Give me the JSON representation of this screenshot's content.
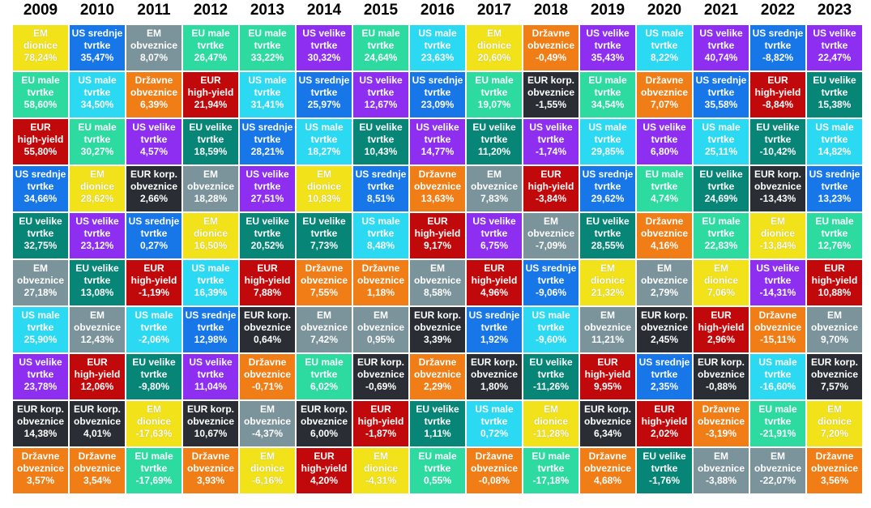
{
  "chart_data": {
    "type": "table",
    "years": [
      "2009",
      "2010",
      "2011",
      "2012",
      "2013",
      "2014",
      "2015",
      "2016",
      "2017",
      "2018",
      "2019",
      "2020",
      "2021",
      "2022",
      "2023"
    ],
    "asset_classes": {
      "em_eq": {
        "label": [
          "EM",
          "dionice"
        ],
        "color": "#f2e21a"
      },
      "us_mid": {
        "label": [
          "US srednje",
          "tvrtke"
        ],
        "color": "#1877e8"
      },
      "em_bond": {
        "label": [
          "EM",
          "obveznice"
        ],
        "color": "#7b939b"
      },
      "eu_small": {
        "label": [
          "EU male",
          "tvrtke"
        ],
        "color": "#2ddba0"
      },
      "us_big": {
        "label": [
          "US velike",
          "tvrtke"
        ],
        "color": "#8d2ef0"
      },
      "eu_big": {
        "label": [
          "EU velike",
          "tvrtke"
        ],
        "color": "#078577"
      },
      "us_small": {
        "label": [
          "US male",
          "tvrtke"
        ],
        "color": "#2cd9f2"
      },
      "gov": {
        "label": [
          "Državne",
          "obveznice"
        ],
        "color": "#f07d16"
      },
      "hy": {
        "label": [
          "EUR",
          "high-yield"
        ],
        "color": "#c1090b"
      },
      "corp": {
        "label": [
          "EUR korp.",
          "obveznice"
        ],
        "color": "#2a2e34"
      }
    },
    "columns": [
      [
        [
          "em_eq",
          "78,24%"
        ],
        [
          "eu_small",
          "58,60%"
        ],
        [
          "hy",
          "55,80%"
        ],
        [
          "us_mid",
          "34,66%"
        ],
        [
          "eu_big",
          "32,75%"
        ],
        [
          "em_bond",
          "27,18%"
        ],
        [
          "us_small",
          "25,90%"
        ],
        [
          "us_big",
          "23,78%"
        ],
        [
          "corp",
          "14,38%"
        ],
        [
          "gov",
          "3,57%"
        ]
      ],
      [
        [
          "us_mid",
          "35,47%"
        ],
        [
          "us_small",
          "34,50%"
        ],
        [
          "eu_small",
          "30,27%"
        ],
        [
          "em_eq",
          "28,62%"
        ],
        [
          "us_big",
          "23,12%"
        ],
        [
          "eu_big",
          "13,08%"
        ],
        [
          "em_bond",
          "12,43%"
        ],
        [
          "hy",
          "12,06%"
        ],
        [
          "corp",
          "4,01%"
        ],
        [
          "gov",
          "3,54%"
        ]
      ],
      [
        [
          "em_bond",
          "8,07%"
        ],
        [
          "gov",
          "6,39%"
        ],
        [
          "us_big",
          "4,57%"
        ],
        [
          "corp",
          "2,66%"
        ],
        [
          "us_mid",
          "0,27%"
        ],
        [
          "hy",
          "-1,19%"
        ],
        [
          "us_small",
          "-2,06%"
        ],
        [
          "eu_big",
          "-9,80%"
        ],
        [
          "em_eq",
          "-17,63%"
        ],
        [
          "eu_small",
          "-17,69%"
        ]
      ],
      [
        [
          "eu_small",
          "26,47%"
        ],
        [
          "hy",
          "21,94%"
        ],
        [
          "eu_big",
          "18,59%"
        ],
        [
          "em_bond",
          "18,28%"
        ],
        [
          "em_eq",
          "16,50%"
        ],
        [
          "us_small",
          "16,39%"
        ],
        [
          "us_mid",
          "12,98%"
        ],
        [
          "us_big",
          "11,04%"
        ],
        [
          "corp",
          "10,67%"
        ],
        [
          "gov",
          "3,93%"
        ]
      ],
      [
        [
          "eu_small",
          "33,22%"
        ],
        [
          "us_small",
          "31,41%"
        ],
        [
          "us_mid",
          "28,21%"
        ],
        [
          "us_big",
          "27,51%"
        ],
        [
          "eu_big",
          "20,52%"
        ],
        [
          "hy",
          "7,88%"
        ],
        [
          "corp",
          "0,64%"
        ],
        [
          "gov",
          "-0,71%"
        ],
        [
          "em_bond",
          "-4,37%"
        ],
        [
          "em_eq",
          "-6,16%"
        ]
      ],
      [
        [
          "us_big",
          "30,32%"
        ],
        [
          "us_mid",
          "25,97%"
        ],
        [
          "us_small",
          "18,27%"
        ],
        [
          "em_eq",
          "10,83%"
        ],
        [
          "eu_big",
          "7,73%"
        ],
        [
          "gov",
          "7,55%"
        ],
        [
          "em_bond",
          "7,42%"
        ],
        [
          "eu_small",
          "6,02%"
        ],
        [
          "corp",
          "6,00%"
        ],
        [
          "hy",
          "4,20%"
        ]
      ],
      [
        [
          "eu_small",
          "24,64%"
        ],
        [
          "us_big",
          "12,67%"
        ],
        [
          "eu_big",
          "10,43%"
        ],
        [
          "us_mid",
          "8,51%"
        ],
        [
          "us_small",
          "8,48%"
        ],
        [
          "gov",
          "1,18%"
        ],
        [
          "em_bond",
          "0,95%"
        ],
        [
          "corp",
          "-0,69%"
        ],
        [
          "hy",
          "-1,87%"
        ],
        [
          "em_eq",
          "-4,31%"
        ]
      ],
      [
        [
          "us_small",
          "23,63%"
        ],
        [
          "us_mid",
          "23,09%"
        ],
        [
          "us_big",
          "14,77%"
        ],
        [
          "gov",
          "13,63%"
        ],
        [
          "hy",
          "9,17%"
        ],
        [
          "em_bond",
          "8,58%"
        ],
        [
          "corp",
          "3,39%"
        ],
        [
          "gov",
          "2,29%"
        ],
        [
          "eu_big",
          "1,11%"
        ],
        [
          "eu_small",
          "0,55%"
        ]
      ],
      [
        [
          "em_eq",
          "20,60%"
        ],
        [
          "eu_small",
          "19,07%"
        ],
        [
          "eu_big",
          "11,20%"
        ],
        [
          "em_bond",
          "7,83%"
        ],
        [
          "us_big",
          "6,75%"
        ],
        [
          "hy",
          "4,96%"
        ],
        [
          "us_mid",
          "1,92%"
        ],
        [
          "corp",
          "1,80%"
        ],
        [
          "us_small",
          "0,72%"
        ],
        [
          "gov",
          "-0,08%"
        ]
      ],
      [
        [
          "gov",
          "-0,49%"
        ],
        [
          "corp",
          "-1,55%"
        ],
        [
          "us_big",
          "-1,74%"
        ],
        [
          "hy",
          "-3,84%"
        ],
        [
          "em_bond",
          "-7,09%"
        ],
        [
          "us_mid",
          "-9,06%"
        ],
        [
          "us_small",
          "-9,60%"
        ],
        [
          "eu_big",
          "-11,26%"
        ],
        [
          "em_eq",
          "-11,28%"
        ],
        [
          "eu_small",
          "-17,18%"
        ]
      ],
      [
        [
          "us_big",
          "35,43%"
        ],
        [
          "eu_small",
          "34,54%"
        ],
        [
          "us_small",
          "29,85%"
        ],
        [
          "us_mid",
          "29,62%"
        ],
        [
          "eu_big",
          "28,55%"
        ],
        [
          "em_eq",
          "21,32%"
        ],
        [
          "em_bond",
          "11,21%"
        ],
        [
          "hy",
          "9,95%"
        ],
        [
          "corp",
          "6,34%"
        ],
        [
          "gov",
          "4,68%"
        ]
      ],
      [
        [
          "us_small",
          "8,22%"
        ],
        [
          "gov",
          "7,07%"
        ],
        [
          "us_big",
          "6,80%"
        ],
        [
          "eu_small",
          "4,74%"
        ],
        [
          "gov",
          "4,16%"
        ],
        [
          "em_bond",
          "2,79%"
        ],
        [
          "corp",
          "2,45%"
        ],
        [
          "us_mid",
          "2,35%"
        ],
        [
          "hy",
          "2,02%"
        ],
        [
          "eu_big",
          "-1,76%"
        ]
      ],
      [
        [
          "us_big",
          "40,74%"
        ],
        [
          "us_mid",
          "35,58%"
        ],
        [
          "us_small",
          "25,11%"
        ],
        [
          "eu_big",
          "24,69%"
        ],
        [
          "eu_small",
          "22,83%"
        ],
        [
          "em_eq",
          "7,06%"
        ],
        [
          "hy",
          "2,96%"
        ],
        [
          "corp",
          "-0,88%"
        ],
        [
          "gov",
          "-3,19%"
        ],
        [
          "em_bond",
          "-3,88%"
        ]
      ],
      [
        [
          "us_mid",
          "-8,82%"
        ],
        [
          "hy",
          "-8,84%"
        ],
        [
          "eu_big",
          "-10,42%"
        ],
        [
          "corp",
          "-13,43%"
        ],
        [
          "em_eq",
          "-13,84%"
        ],
        [
          "us_big",
          "-14,31%"
        ],
        [
          "gov",
          "-15,11%"
        ],
        [
          "us_small",
          "-16,60%"
        ],
        [
          "eu_small",
          "-21,91%"
        ],
        [
          "em_bond",
          "-22,07%"
        ]
      ],
      [
        [
          "us_big",
          "22,47%"
        ],
        [
          "eu_big",
          "15,38%"
        ],
        [
          "us_small",
          "14,82%"
        ],
        [
          "us_mid",
          "13,23%"
        ],
        [
          "eu_small",
          "12,76%"
        ],
        [
          "hy",
          "10,88%"
        ],
        [
          "em_bond",
          "9,70%"
        ],
        [
          "corp",
          "7,57%"
        ],
        [
          "em_eq",
          "7,20%"
        ],
        [
          "gov",
          "3,56%"
        ]
      ]
    ]
  }
}
